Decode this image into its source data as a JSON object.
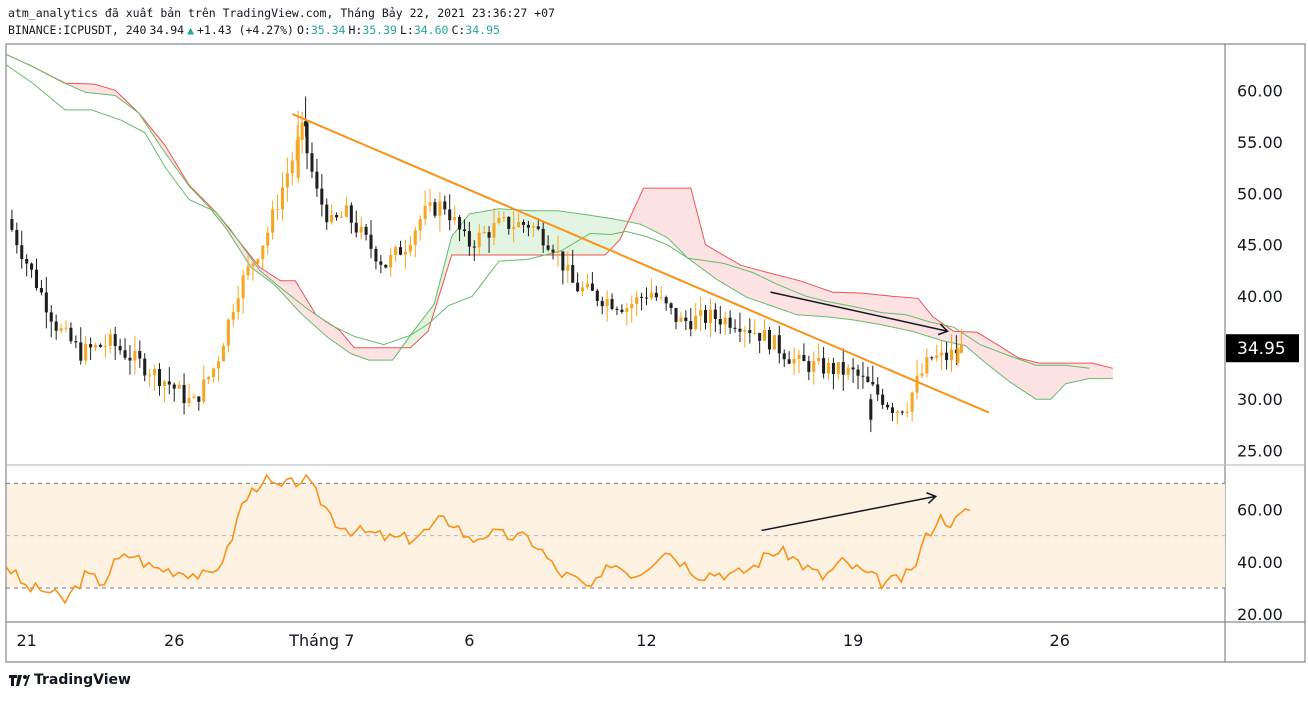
{
  "header": {
    "line1": "atm_analytics đã xuất bản trên TradingView.com, Tháng Bảy 22, 2021 23:36:27 +07",
    "symbol": "BINANCE:ICPUSDT, 240",
    "last": "34.94",
    "arrow": "▲",
    "change": "+1.43 (+4.27%)",
    "o_label": "O:",
    "o": "35.34",
    "h_label": "H:",
    "h": "35.39",
    "l_label": "L:",
    "l": "34.60",
    "c_label": "C:",
    "c": "34.95"
  },
  "footer": {
    "brand": "TradingView"
  },
  "colors": {
    "bull": "#f5a623",
    "bear": "#1f1f1f",
    "trend": "#f7931a",
    "cloud_bear": "#fde2e4",
    "cloud_bull": "#e3f4e3",
    "span_red": "#ef5350",
    "span_green": "#66bb6a",
    "rsi_line": "#f7931a",
    "rsi_band": "#fdf1e2"
  },
  "chart_data": {
    "type": "candlestick",
    "symbol": "BINANCE:ICPUSDT",
    "interval": "240",
    "price_axis_ticks": [
      "60.00",
      "55.00",
      "50.00",
      "45.00",
      "40.00",
      "35.00",
      "30.00",
      "25.00"
    ],
    "price_range": [
      23.8,
      64.5
    ],
    "rsi_axis_ticks": [
      "60.00",
      "40.00",
      "20.00"
    ],
    "rsi_range": [
      17,
      77
    ],
    "rsi_levels": [
      70,
      50,
      30
    ],
    "x_ticks": [
      {
        "day": 0,
        "label": "21"
      },
      {
        "day": 5,
        "label": "26"
      },
      {
        "day": 10,
        "label": "Tháng 7"
      },
      {
        "day": 15,
        "label": "6"
      },
      {
        "day": 21,
        "label": "12"
      },
      {
        "day": 28,
        "label": "19"
      },
      {
        "day": 35,
        "label": "26"
      }
    ],
    "x_range_days": [
      -0.7,
      40.6
    ],
    "last_price": "34.95",
    "price_anchors": [
      [
        -0.5,
        47.5
      ],
      [
        0.3,
        42.5
      ],
      [
        1.2,
        37
      ],
      [
        2.0,
        34.5
      ],
      [
        3.0,
        35.5
      ],
      [
        4.0,
        33.5
      ],
      [
        5.0,
        31.5
      ],
      [
        5.8,
        29.5
      ],
      [
        6.6,
        33.5
      ],
      [
        7.3,
        40.5
      ],
      [
        8.3,
        46
      ],
      [
        9.0,
        52
      ],
      [
        9.5,
        56
      ],
      [
        10.0,
        50
      ],
      [
        10.5,
        47
      ],
      [
        11.0,
        48
      ],
      [
        11.5,
        46
      ],
      [
        12.3,
        43
      ],
      [
        13.0,
        45
      ],
      [
        13.6,
        48
      ],
      [
        14.3,
        49
      ],
      [
        15.1,
        45
      ],
      [
        16.2,
        47
      ],
      [
        17.2,
        47
      ],
      [
        18.0,
        45
      ],
      [
        18.7,
        41
      ],
      [
        19.5,
        40
      ],
      [
        20.5,
        39
      ],
      [
        21.3,
        40.5
      ],
      [
        22.3,
        37.5
      ],
      [
        23.4,
        38
      ],
      [
        24.3,
        37.5
      ],
      [
        25.2,
        36
      ],
      [
        26.3,
        33.5
      ],
      [
        27.3,
        33
      ],
      [
        28.2,
        32.5
      ],
      [
        29.0,
        30.5
      ],
      [
        29.6,
        29
      ],
      [
        30.0,
        29.5
      ],
      [
        30.3,
        31.5
      ],
      [
        30.8,
        34
      ],
      [
        31.3,
        34
      ],
      [
        31.8,
        34.9
      ]
    ],
    "wide_bars": [
      {
        "day": 9.45,
        "o": 57.0,
        "c": 56.5,
        "h": 59.4,
        "l": 55.5
      },
      {
        "day": 9.2,
        "o": 51.5,
        "c": 55.5,
        "h": 58.0,
        "l": 51.0
      },
      {
        "day": 28.6,
        "o": 30.0,
        "c": 28.0,
        "h": 30.5,
        "l": 26.8
      },
      {
        "day": 31.55,
        "o": 33.5,
        "c": 34.95,
        "h": 35.4,
        "l": 33.2
      }
    ],
    "kijun": [
      [
        -0.7,
        62.5
      ],
      [
        0.2,
        60.7
      ],
      [
        1.3,
        58.1
      ],
      [
        2.2,
        58.1
      ],
      [
        3.2,
        57.1
      ],
      [
        4.0,
        55.9
      ],
      [
        4.7,
        52.5
      ],
      [
        5.5,
        49.4
      ],
      [
        6.4,
        48.2
      ],
      [
        6.9,
        46.5
      ],
      [
        7.9,
        42.5
      ],
      [
        8.7,
        40.6
      ],
      [
        9.5,
        38.8
      ],
      [
        10.3,
        37.2
      ],
      [
        11.1,
        36.1
      ],
      [
        12.1,
        35.3
      ],
      [
        13.0,
        36.2
      ],
      [
        13.6,
        37.3
      ],
      [
        14.3,
        39.1
      ],
      [
        15.1,
        40.0
      ],
      [
        16.0,
        43.4
      ],
      [
        17.0,
        43.6
      ],
      [
        18.1,
        44.4
      ],
      [
        19.1,
        46.1
      ],
      [
        19.8,
        46.0
      ],
      [
        20.3,
        46.3
      ],
      [
        21.0,
        45.8
      ],
      [
        21.7,
        45.0
      ],
      [
        22.4,
        43.7
      ],
      [
        23.6,
        43.2
      ],
      [
        24.6,
        42.3
      ],
      [
        25.4,
        41.2
      ],
      [
        26.4,
        40.0
      ],
      [
        27.1,
        39.5
      ],
      [
        28.0,
        39.0
      ],
      [
        29.0,
        38.4
      ],
      [
        29.8,
        38.2
      ],
      [
        30.6,
        37.5
      ],
      [
        31.4,
        37.0
      ],
      [
        32.3,
        35.3
      ],
      [
        33.3,
        34.2
      ],
      [
        34.2,
        33.3
      ],
      [
        35.2,
        33.3
      ],
      [
        36.0,
        33.0
      ]
    ],
    "span_a": [
      [
        -0.7,
        63.5
      ],
      [
        0.2,
        62.3
      ],
      [
        1.2,
        60.8
      ],
      [
        2.0,
        59.8
      ],
      [
        3.0,
        59.5
      ],
      [
        3.8,
        57.8
      ],
      [
        4.6,
        54.3
      ],
      [
        5.5,
        50.7
      ],
      [
        6.2,
        48.6
      ],
      [
        6.8,
        46.4
      ],
      [
        7.6,
        42.8
      ],
      [
        8.4,
        41.1
      ],
      [
        9.3,
        38.3
      ],
      [
        10.2,
        36.0
      ],
      [
        11.0,
        34.4
      ],
      [
        11.6,
        33.8
      ],
      [
        12.4,
        33.8
      ],
      [
        13.1,
        36.6
      ],
      [
        13.8,
        39.2
      ],
      [
        14.4,
        45.8
      ],
      [
        15.0,
        48.0
      ],
      [
        16.0,
        48.5
      ],
      [
        17.1,
        48.3
      ],
      [
        18.0,
        48.3
      ],
      [
        19.0,
        47.9
      ],
      [
        19.9,
        47.5
      ],
      [
        20.8,
        47.0
      ],
      [
        21.7,
        45.7
      ],
      [
        22.4,
        43.7
      ],
      [
        23.4,
        41.6
      ],
      [
        24.4,
        39.9
      ],
      [
        25.3,
        39.0
      ],
      [
        26.1,
        38.2
      ],
      [
        27.1,
        38.0
      ],
      [
        28.0,
        37.7
      ],
      [
        29.0,
        37.2
      ],
      [
        30.0,
        36.6
      ],
      [
        31.0,
        35.7
      ],
      [
        31.8,
        35.2
      ],
      [
        32.5,
        33.5
      ],
      [
        33.3,
        31.7
      ],
      [
        34.2,
        30.0
      ],
      [
        34.7,
        30.0
      ],
      [
        35.2,
        31.5
      ],
      [
        36.0,
        32.0
      ],
      [
        36.8,
        32.0
      ]
    ],
    "span_b": [
      [
        -0.7,
        63.5
      ],
      [
        0.2,
        62.3
      ],
      [
        1.3,
        60.7
      ],
      [
        2.3,
        60.6
      ],
      [
        3.0,
        60.0
      ],
      [
        3.8,
        57.8
      ],
      [
        4.7,
        54.6
      ],
      [
        5.5,
        50.8
      ],
      [
        6.4,
        48.2
      ],
      [
        6.9,
        46.4
      ],
      [
        7.9,
        42.8
      ],
      [
        8.6,
        41.5
      ],
      [
        9.1,
        41.5
      ],
      [
        9.8,
        38.2
      ],
      [
        10.6,
        36.7
      ],
      [
        11.1,
        35.0
      ],
      [
        12.1,
        35.0
      ],
      [
        13.0,
        35.0
      ],
      [
        13.6,
        36.6
      ],
      [
        14.4,
        44.0
      ],
      [
        15.4,
        44.0
      ],
      [
        16.4,
        44.0
      ],
      [
        17.4,
        44.0
      ],
      [
        18.4,
        44.0
      ],
      [
        19.6,
        44.0
      ],
      [
        20.1,
        45.5
      ],
      [
        20.9,
        50.5
      ],
      [
        22.5,
        50.5
      ],
      [
        23.0,
        45.0
      ],
      [
        24.2,
        43.0
      ],
      [
        25.1,
        42.3
      ],
      [
        26.2,
        41.5
      ],
      [
        27.3,
        40.4
      ],
      [
        28.3,
        40.3
      ],
      [
        29.3,
        40.0
      ],
      [
        30.2,
        39.8
      ],
      [
        30.7,
        38.0
      ],
      [
        31.4,
        36.6
      ],
      [
        32.2,
        36.5
      ],
      [
        33.0,
        35.1
      ],
      [
        33.6,
        34.0
      ],
      [
        34.3,
        33.5
      ],
      [
        35.3,
        33.5
      ],
      [
        36.1,
        33.5
      ],
      [
        36.8,
        33.0
      ]
    ],
    "trendline": [
      [
        9.0,
        57.7
      ],
      [
        32.6,
        28.7
      ]
    ],
    "price_arrow": [
      [
        25.2,
        40.4
      ],
      [
        31.2,
        36.6
      ]
    ],
    "rsi_arrow": [
      [
        24.9,
        52
      ],
      [
        30.8,
        65
      ]
    ],
    "rsi_anchors": [
      [
        -0.7,
        39
      ],
      [
        0.0,
        30
      ],
      [
        0.7,
        29
      ],
      [
        1.3,
        25
      ],
      [
        2.0,
        35
      ],
      [
        2.6,
        32
      ],
      [
        3.0,
        40
      ],
      [
        3.6,
        43
      ],
      [
        4.2,
        38
      ],
      [
        4.8,
        37
      ],
      [
        5.5,
        36
      ],
      [
        6.2,
        34
      ],
      [
        6.8,
        44
      ],
      [
        7.3,
        62
      ],
      [
        8.0,
        72
      ],
      [
        8.5,
        68
      ],
      [
        9.0,
        70
      ],
      [
        9.4,
        72
      ],
      [
        10.0,
        63
      ],
      [
        10.5,
        55
      ],
      [
        11.0,
        52
      ],
      [
        11.6,
        51
      ],
      [
        12.3,
        49
      ],
      [
        13.0,
        49
      ],
      [
        13.6,
        52
      ],
      [
        14.0,
        56
      ],
      [
        14.5,
        55
      ],
      [
        15.0,
        48
      ],
      [
        15.6,
        51
      ],
      [
        16.2,
        50
      ],
      [
        17.0,
        49
      ],
      [
        17.4,
        45
      ],
      [
        18.0,
        36
      ],
      [
        18.5,
        34
      ],
      [
        19.0,
        30
      ],
      [
        19.4,
        32
      ],
      [
        19.8,
        40
      ],
      [
        20.6,
        35
      ],
      [
        21.0,
        38
      ],
      [
        21.6,
        45
      ],
      [
        22.2,
        40
      ],
      [
        22.8,
        35
      ],
      [
        23.4,
        36
      ],
      [
        24.0,
        35
      ],
      [
        24.6,
        38
      ],
      [
        25.2,
        44
      ],
      [
        25.8,
        43
      ],
      [
        26.4,
        38
      ],
      [
        27.0,
        34
      ],
      [
        27.6,
        40
      ],
      [
        28.0,
        38
      ],
      [
        28.5,
        35
      ],
      [
        29.0,
        32
      ],
      [
        29.5,
        33
      ],
      [
        30.0,
        36
      ],
      [
        30.4,
        48
      ],
      [
        30.9,
        57
      ],
      [
        31.4,
        55
      ],
      [
        31.8,
        59
      ],
      [
        32.1,
        61
      ]
    ]
  }
}
